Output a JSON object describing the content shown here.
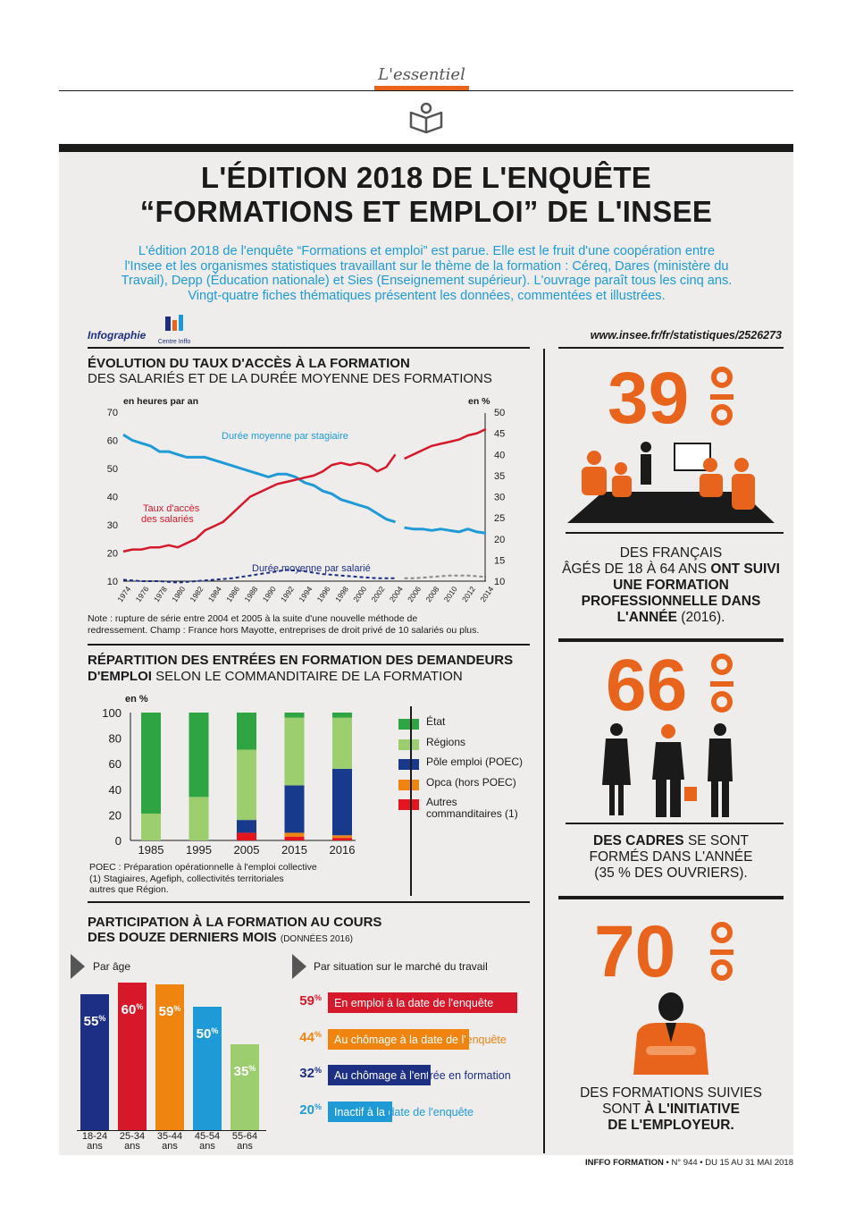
{
  "header": {
    "label": "L'essentiel"
  },
  "title": {
    "line1": "L'ÉDITION 2018 DE L'ENQUÊTE",
    "line2": "“FORMATIONS ET EMPLOI” DE L'INSEE"
  },
  "intro": {
    "line1": "L'édition 2018 de l'enquête “Formations et emploi” est parue. Elle est le fruit d'une coopération entre",
    "line2": "l'Insee et les organismes statistiques travaillant sur le thème de la formation : Céreq, Dares (ministère du",
    "line3": "Travail), Depp (Éducation nationale) et Sies (Enseignement supérieur). L'ouvrage paraît tous les cinq ans.",
    "line4": "Vingt-quatre fiches thématiques présentent les données, commentées et illustrées."
  },
  "credits": {
    "infographie": "Infographie",
    "logo_text": "Centre Inffo",
    "url": "www.insee.fr/fr/statistiques/2526273"
  },
  "footer": {
    "brand": "INFFO FORMATION",
    "issue": "• N° 944 • DU 15 AU 31 MAI 2018"
  },
  "stats": [
    {
      "value": "39",
      "unit": "%",
      "text_lines": [
        "DES FRANÇAIS",
        "ÂGÉS DE 18 À 64 ANS",
        "ONT SUIVI UNE FORMATION",
        "PROFESSIONNELLE DANS",
        "L'ANNÉE",
        "(2016)."
      ]
    },
    {
      "value": "66",
      "unit": "%",
      "text_lines": [
        "DES CADRES",
        "SE SONT",
        "FORMÉS DANS L'ANNÉE",
        "(35 % DES OUVRIERS)."
      ]
    },
    {
      "value": "70",
      "unit": "%",
      "text_lines": [
        "DES FORMATIONS SUIVIES",
        "SONT",
        "À L'INITIATIVE",
        "DE L'EMPLOYEUR."
      ]
    }
  ],
  "colors": {
    "orange": "#e8641c",
    "red": "#d7182a",
    "blue": "#1e9ad6",
    "navy": "#1c2f82",
    "green_dark": "#2ea442",
    "green_light": "#9ccd6e",
    "pole": "#173a8c",
    "opca": "#ef8411",
    "other": "#e4151f"
  },
  "chart_data": [
    {
      "type": "line",
      "title": "ÉVOLUTION DU TAUX D'ACCÈS À LA FORMATION",
      "subtitle": "DES SALARIÉS ET DE LA DURÉE MOYENNE DES FORMATIONS",
      "ylabel_left": "en heures par an",
      "ylabel_right": "en %",
      "left_ticks": [
        "70",
        "60",
        "50",
        "40",
        "30",
        "20",
        "10"
      ],
      "right_ticks": [
        "50",
        "45",
        "40",
        "35",
        "30",
        "25",
        "20",
        "15",
        "10"
      ],
      "x_ticks": [
        "1974",
        "1976",
        "1978",
        "1980",
        "1982",
        "1984",
        "1986",
        "1988",
        "1990",
        "1992",
        "1994",
        "1996",
        "1998",
        "2000",
        "2002",
        "2004",
        "2006",
        "2008",
        "2010",
        "2012",
        "2014"
      ],
      "left_range": [
        10,
        70
      ],
      "right_range": [
        10,
        50
      ],
      "series": [
        {
          "name": "Durée moyenne par stagiaire",
          "axis": "left",
          "x": [
            1974,
            1975,
            1976,
            1977,
            1978,
            1979,
            1980,
            1981,
            1982,
            1983,
            1984,
            1985,
            1986,
            1987,
            1988,
            1989,
            1990,
            1991,
            1992,
            1993,
            1994,
            1995,
            1996,
            1997,
            1998,
            1999,
            2000,
            2001,
            2002,
            2003,
            2004
          ],
          "y": [
            62,
            60,
            59,
            58,
            56,
            56,
            55,
            54,
            54,
            54,
            53,
            52,
            51,
            50,
            49,
            48,
            47,
            48,
            48,
            47,
            45,
            44,
            42,
            41,
            39,
            38,
            37,
            36,
            34,
            32,
            31
          ]
        },
        {
          "name": "Durée moyenne par stagiaire (nouvelle série)",
          "axis": "left",
          "x": [
            2005,
            2006,
            2007,
            2008,
            2009,
            2010,
            2011,
            2012,
            2013,
            2014
          ],
          "y": [
            29,
            28.5,
            28.5,
            28,
            28.5,
            28,
            27.5,
            28.5,
            27.5,
            27
          ]
        },
        {
          "name": "Taux d'accès des salariés",
          "axis": "right",
          "x": [
            1974,
            1975,
            1976,
            1977,
            1978,
            1979,
            1980,
            1981,
            1982,
            1983,
            1984,
            1985,
            1986,
            1987,
            1988,
            1989,
            1990,
            1991,
            1992,
            1993,
            1994,
            1995,
            1996,
            1997,
            1998,
            1999,
            2000,
            2001,
            2002,
            2003,
            2004
          ],
          "y": [
            17,
            17.5,
            17.5,
            18,
            18,
            18.5,
            18,
            19,
            20,
            22,
            23,
            24,
            26,
            28,
            30,
            31,
            32,
            33,
            33.5,
            34,
            34.5,
            35,
            36,
            37.5,
            38,
            37.5,
            38,
            37.5,
            36,
            37,
            40
          ]
        },
        {
          "name": "Taux d'accès des salariés (nouvelle série)",
          "axis": "right",
          "x": [
            2005,
            2006,
            2007,
            2008,
            2009,
            2010,
            2011,
            2012,
            2013,
            2014
          ],
          "y": [
            39,
            40,
            41,
            42,
            42.5,
            43,
            43.5,
            44.5,
            45,
            46
          ]
        },
        {
          "name": "Durée moyenne par salarié",
          "axis": "left",
          "x": [
            1974,
            1976,
            1978,
            1980,
            1982,
            1984,
            1986,
            1988,
            1990,
            1992,
            1994,
            1996,
            1998,
            2000,
            2002,
            2004
          ],
          "y": [
            10.5,
            10,
            10,
            9.5,
            10,
            10.5,
            11,
            12,
            13,
            14,
            13.5,
            12.5,
            12,
            11.5,
            11,
            11
          ]
        },
        {
          "name": "Durée moyenne par salarié (nouvelle série)",
          "axis": "left",
          "x": [
            2005,
            2006,
            2008,
            2010,
            2012,
            2014
          ],
          "y": [
            11,
            11,
            11.5,
            12,
            12,
            11.5
          ]
        }
      ],
      "labels": {
        "stagiaire": "Durée moyenne par stagiaire",
        "acces1": "Taux d'accès",
        "acces2": "des salariés",
        "salarie": "Durée moyenne par salarié"
      },
      "note_lines": [
        "Note : rupture de série entre 2004 et 2005 à la suite d'une nouvelle méthode de",
        "redressement. Champ : France hors Mayotte, entreprises de droit privé de 10 salariés ou plus."
      ]
    },
    {
      "type": "bar",
      "stacked": true,
      "title_bold1": "RÉPARTITION DES ENTRÉES EN FORMATION DES DEMANDEURS",
      "title_bold2": "D'EMPLOI",
      "title_rest": "SELON LE COMMANDITAIRE DE LA FORMATION",
      "ylabel": "en %",
      "y_ticks": [
        "100",
        "80",
        "60",
        "40",
        "20",
        "0"
      ],
      "ylim": [
        0,
        100
      ],
      "categories": [
        "1985",
        "1995",
        "2005",
        "2015",
        "2016"
      ],
      "series": [
        {
          "name": "Autres commanditaires (1)",
          "values": [
            0,
            0,
            6,
            3,
            2
          ]
        },
        {
          "name": "Opca (hors POEC)",
          "values": [
            0,
            0,
            0,
            3,
            2
          ]
        },
        {
          "name": "Pôle emploi (POEC)",
          "values": [
            0,
            0,
            10,
            37,
            52
          ]
        },
        {
          "name": "Régions",
          "values": [
            21,
            34,
            55,
            53,
            40
          ]
        },
        {
          "name": "État",
          "values": [
            79,
            66,
            29,
            4,
            4
          ]
        }
      ],
      "legend": [
        {
          "name": "État",
          "color": "#2ea442"
        },
        {
          "name": "Régions",
          "color": "#9ccd6e"
        },
        {
          "name": "Pôle emploi (POEC)",
          "color": "#173a8c"
        },
        {
          "name": "Opca (hors POEC)",
          "color": "#ef8411"
        },
        {
          "name": "Autres",
          "name2": "commanditaires (1)",
          "color": "#e4151f"
        }
      ],
      "note_lines": [
        "POEC : Préparation opérationnelle à l'emploi collective",
        "(1) Stagiaires, Agefiph, collectivités territoriales",
        "autres que Région."
      ]
    },
    {
      "type": "bar",
      "title_line1": "PARTICIPATION À LA FORMATION AU COURS",
      "title_line2": "DES DOUZE DERNIERS MOIS",
      "title_small": "(DONNÉES 2016)",
      "subtitle": "Par âge",
      "categories": [
        "18-24 ans",
        "25-34 ans",
        "35-44 ans",
        "45-54 ans",
        "55-64 ans"
      ],
      "values": [
        55,
        60,
        59,
        50,
        35
      ],
      "value_labels": [
        "55",
        "60",
        "59",
        "50",
        "35"
      ],
      "unit": "%",
      "colors": [
        "#1c2f82",
        "#d7182a",
        "#ef8411",
        "#1e9ad6",
        "#9ccd6e"
      ]
    },
    {
      "type": "bar",
      "orientation": "horizontal",
      "subtitle": "Par situation sur le marché du travail",
      "categories": [
        "En emploi à la date de l'enquête",
        "Au chômage à la date de l'enquête",
        "Au chômage à l'entrée en formation",
        "Inactif à la date de l'enquête"
      ],
      "values": [
        59,
        44,
        32,
        20
      ],
      "value_labels": [
        "59",
        "44",
        "32",
        "20"
      ],
      "unit": "%",
      "colors": [
        "#d7182a",
        "#ef8411",
        "#1c2f82",
        "#1e9ad6"
      ]
    }
  ]
}
